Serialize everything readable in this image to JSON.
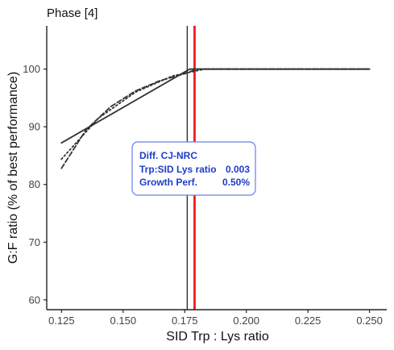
{
  "chart_data": {
    "type": "line",
    "title": "Phase [4]",
    "xlabel": "SID Trp : Lys ratio",
    "ylabel": "G:F ratio (% of best performance)",
    "xlim": [
      0.119,
      0.257
    ],
    "ylim": [
      58.3,
      107.5
    ],
    "x_ticks": [
      "0.125",
      "0.150",
      "0.175",
      "0.200",
      "0.225",
      "0.250"
    ],
    "y_ticks": [
      "60",
      "70",
      "80",
      "90",
      "100"
    ],
    "grid": false,
    "series": [
      {
        "style": "solid",
        "color": "#333333",
        "x": [
          0.125,
          0.177,
          0.25
        ],
        "y": [
          87.2,
          100,
          100
        ]
      },
      {
        "style": "dashed",
        "color": "#333333",
        "x": [
          0.125,
          0.135,
          0.145,
          0.155,
          0.165,
          0.175,
          0.18,
          0.25
        ],
        "y": [
          82.8,
          89.5,
          93.5,
          96.2,
          98.0,
          99.2,
          100,
          100
        ]
      },
      {
        "style": "dotted",
        "color": "#333333",
        "x": [
          0.125,
          0.14,
          0.155,
          0.17,
          0.183,
          0.25
        ],
        "y": [
          84.4,
          91.5,
          96.0,
          98.8,
          100,
          100
        ]
      }
    ],
    "vlines": [
      {
        "x": 0.176,
        "color": "#000000"
      },
      {
        "x": 0.179,
        "color": "#ee1c1c"
      }
    ],
    "annotation": {
      "title": "Diff. CJ-NRC",
      "rows": [
        {
          "label": "Trp:SID Lys ratio",
          "value": "0.003"
        },
        {
          "label": "Growth Perf.",
          "value": "0.50%"
        }
      ],
      "border_color": "#6a7fe6",
      "text_color": "#1f3cc8"
    }
  }
}
